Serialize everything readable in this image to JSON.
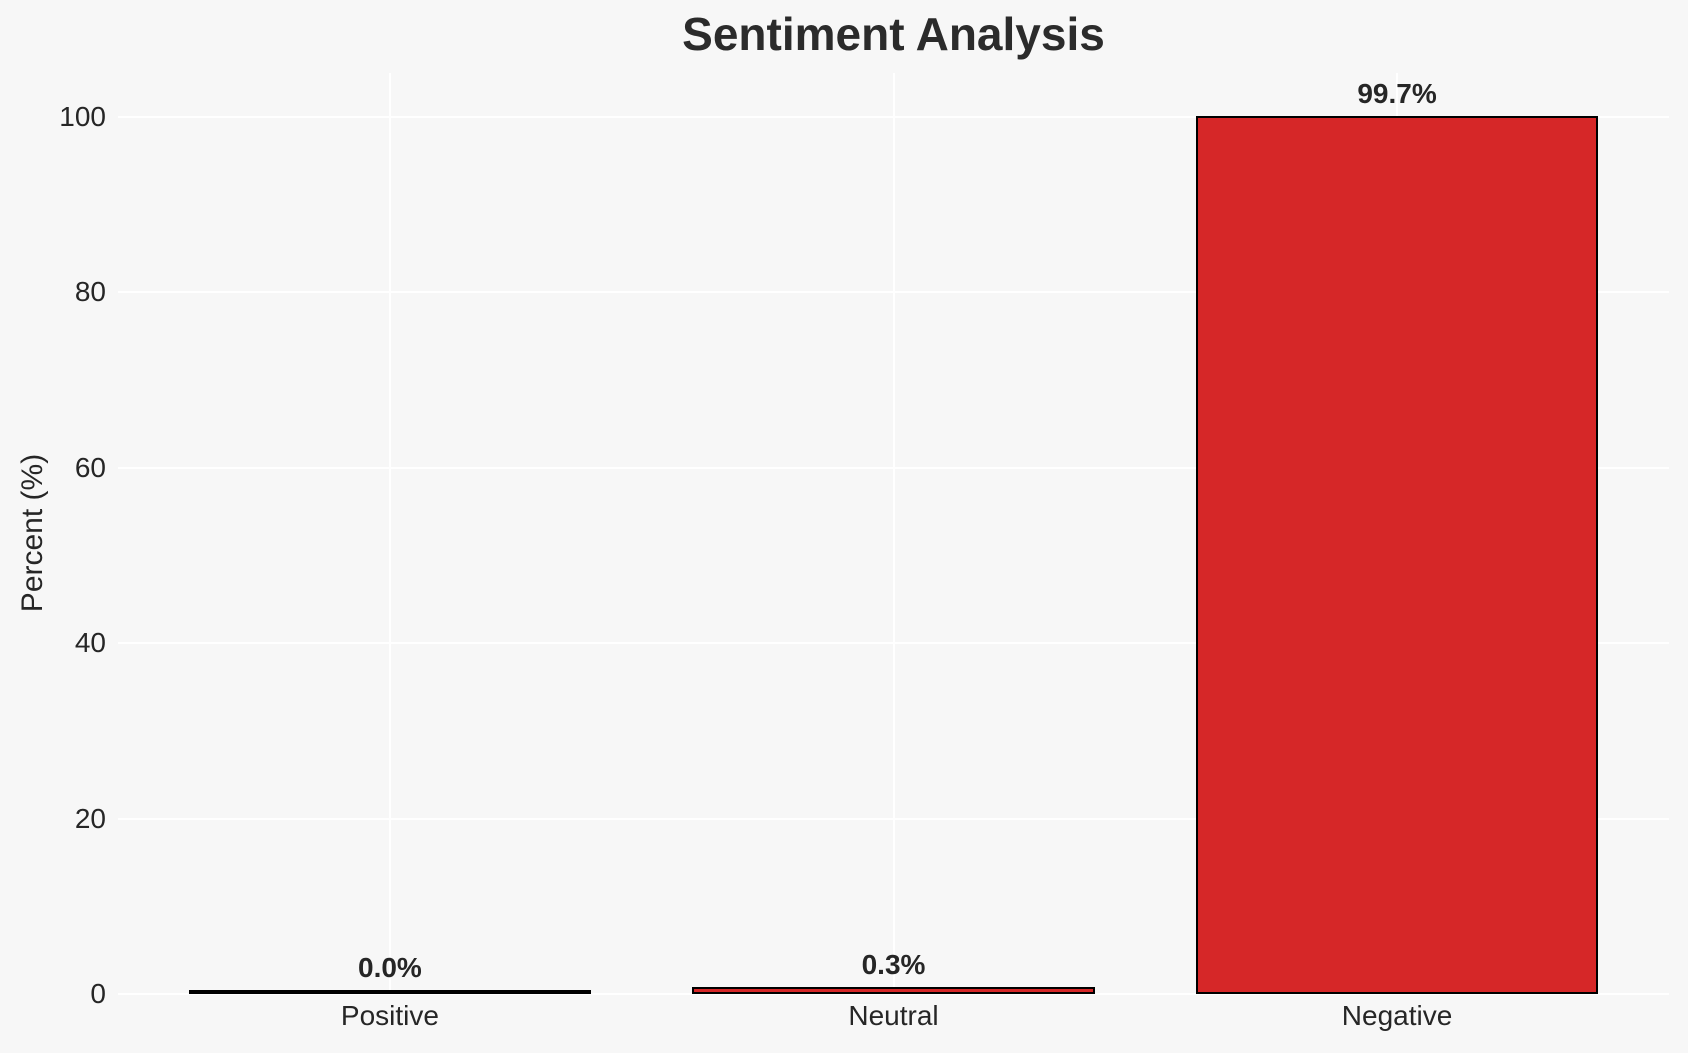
{
  "figure": {
    "background_color": "#f7f7f7",
    "grid_color": "#ffffff",
    "text_color": "#262626",
    "title_color": "#2b2b2b"
  },
  "chart_data": {
    "type": "bar",
    "title": "Sentiment Analysis",
    "xlabel": "",
    "ylabel": "Percent (%)",
    "categories": [
      "Positive",
      "Neutral",
      "Negative"
    ],
    "values": [
      0.0,
      0.3,
      99.7
    ],
    "bar_labels": [
      "0.0%",
      "0.3%",
      "99.7%"
    ],
    "yticks": [
      0,
      20,
      40,
      60,
      80,
      100
    ],
    "ylim": [
      0,
      105
    ],
    "grid": true,
    "legend_position": "none",
    "bar_color": "#d62728",
    "bar_edge_color": "#000000"
  }
}
